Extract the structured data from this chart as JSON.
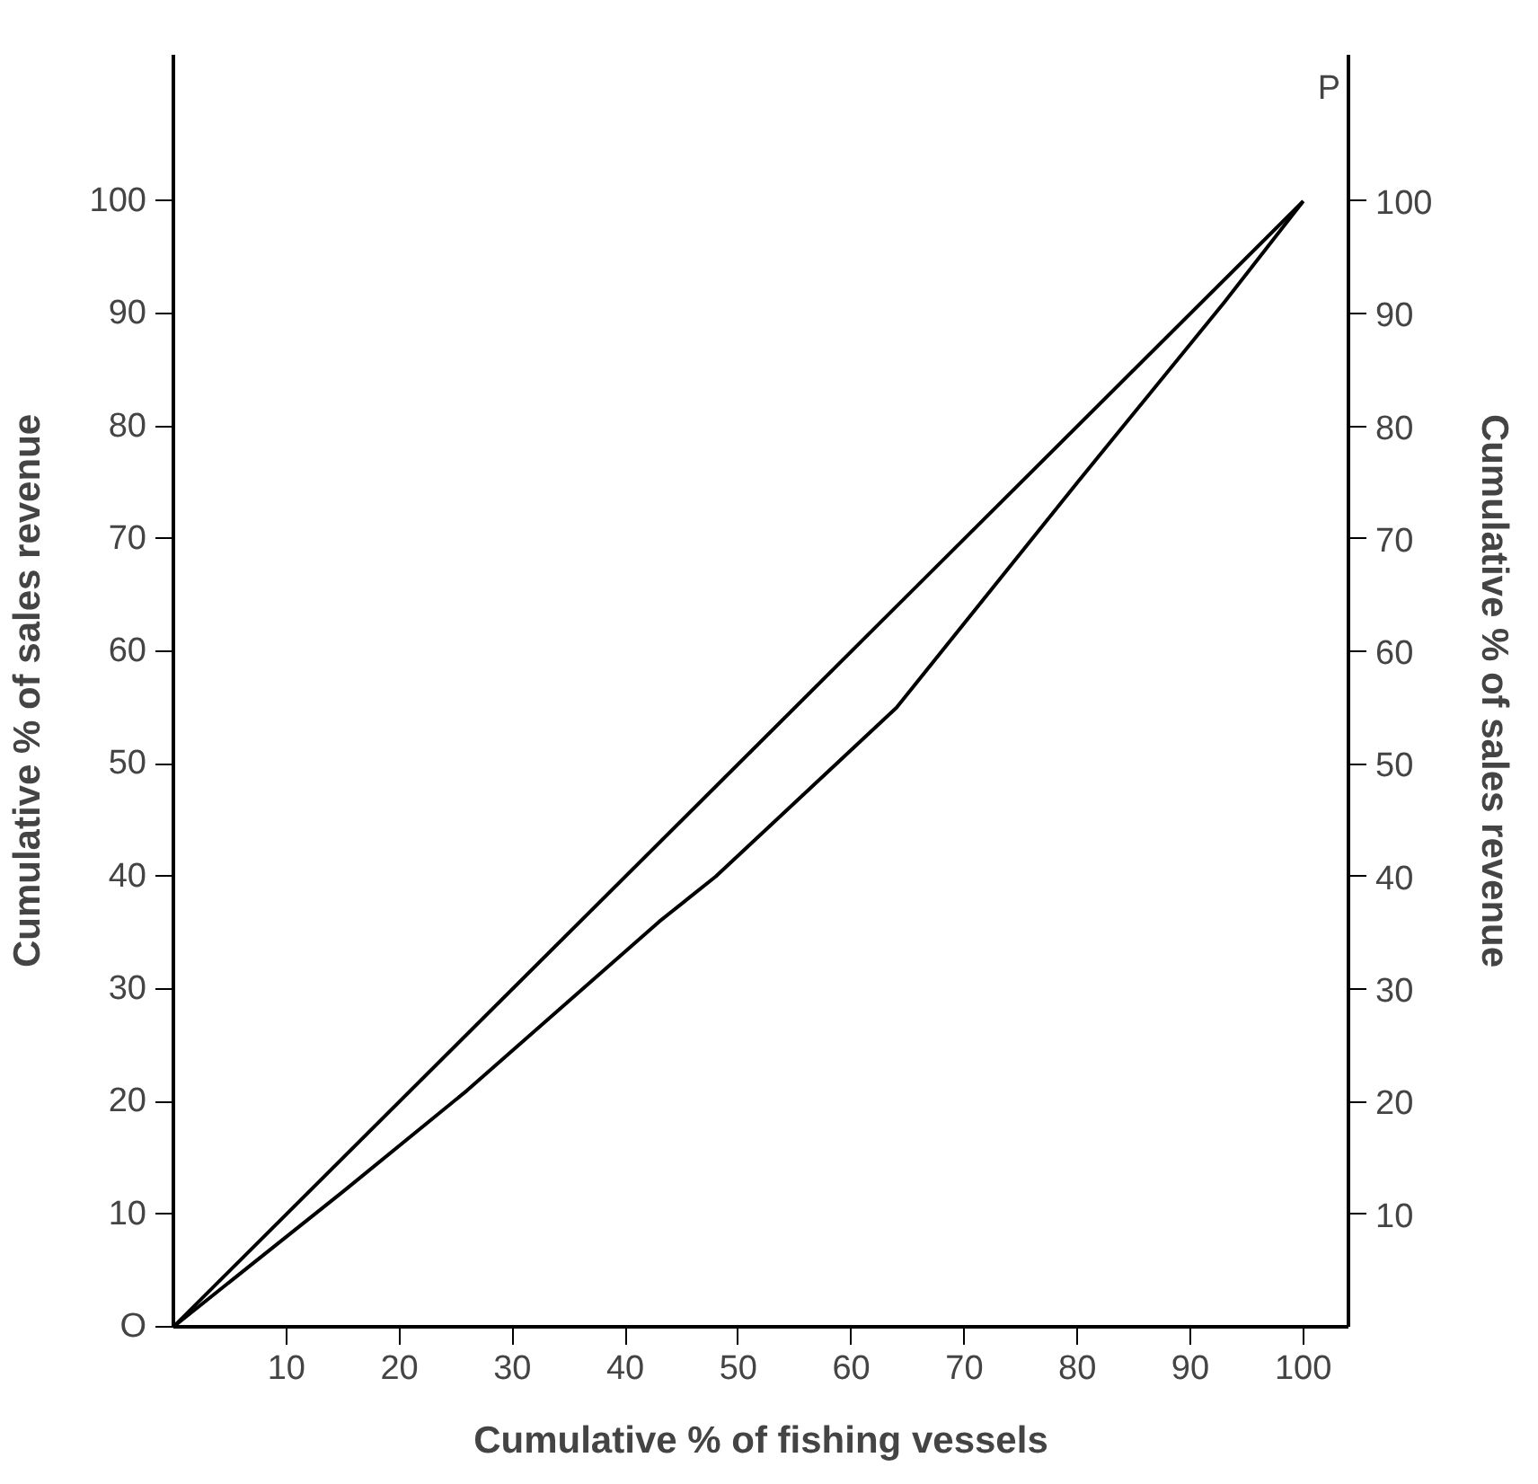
{
  "chart_data": {
    "type": "line",
    "xlabel": "Cumulative % of fishing vessels",
    "ylabel": "Cumulative % of sales revenue",
    "y2label": "Cumulative % of sales revenue",
    "xlim": [
      0,
      104
    ],
    "ylim": [
      0,
      113
    ],
    "y2lim": [
      0,
      113
    ],
    "xticks": [
      10,
      20,
      30,
      40,
      50,
      60,
      70,
      80,
      90,
      100
    ],
    "yticks": [
      {
        "value": 0,
        "label": "O"
      },
      10,
      20,
      30,
      40,
      50,
      60,
      70,
      80,
      90,
      100
    ],
    "y2ticks": [
      10,
      20,
      30,
      40,
      50,
      60,
      70,
      80,
      90,
      100
    ],
    "series": [
      {
        "color": "#000000",
        "x": [
          0,
          100
        ],
        "values": [
          0,
          100
        ]
      },
      {
        "color": "#000000",
        "x": [
          0,
          15,
          26,
          43,
          48,
          64,
          80,
          93,
          100
        ],
        "values": [
          0,
          12,
          21,
          36,
          40,
          55,
          75,
          91,
          100
        ]
      }
    ],
    "annotations": [
      {
        "text": "P",
        "x": 100,
        "y": 100
      }
    ],
    "grid": false,
    "line_style": "solid",
    "marker": "none"
  }
}
